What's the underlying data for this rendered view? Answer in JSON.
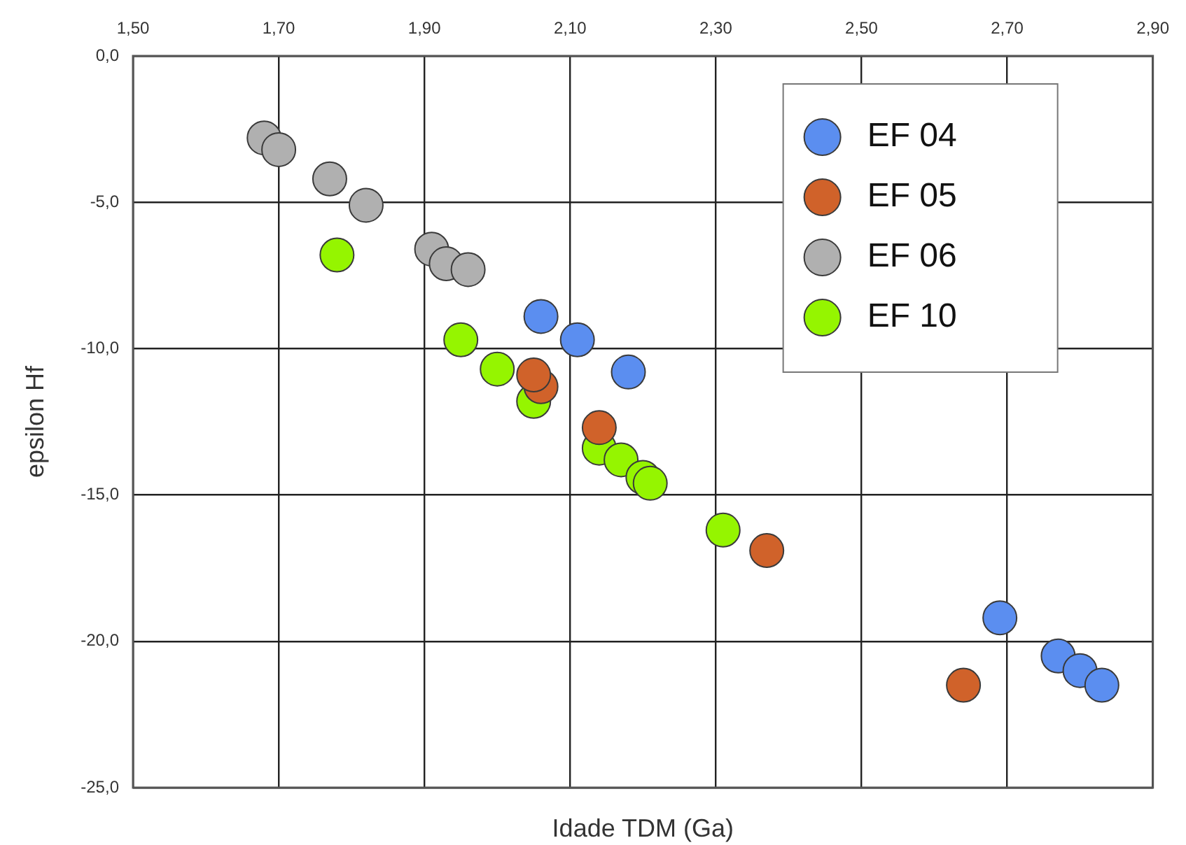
{
  "chart_data": {
    "type": "scatter",
    "xlabel": "Idade TDM (Ga)",
    "ylabel": "epsilon Hf",
    "xlim": [
      1.5,
      2.9
    ],
    "ylim": [
      -25,
      0
    ],
    "xticks": [
      {
        "value": 1.5,
        "label": "1,50"
      },
      {
        "value": 1.7,
        "label": "1,70"
      },
      {
        "value": 1.9,
        "label": "1,90"
      },
      {
        "value": 2.1,
        "label": "2,10"
      },
      {
        "value": 2.3,
        "label": "2,30"
      },
      {
        "value": 2.5,
        "label": "2,50"
      },
      {
        "value": 2.7,
        "label": "2,70"
      },
      {
        "value": 2.9,
        "label": "2,90"
      }
    ],
    "yticks": [
      {
        "value": 0,
        "label": "0,0"
      },
      {
        "value": -5,
        "label": "-5,0"
      },
      {
        "value": -10,
        "label": "-10,0"
      },
      {
        "value": -15,
        "label": "-15,0"
      },
      {
        "value": -20,
        "label": "-20,0"
      },
      {
        "value": -25,
        "label": "-25,0"
      }
    ],
    "grid": true,
    "legend": "top right",
    "marker": "circle",
    "series": [
      {
        "name": "EF 04",
        "color": "#5b8ef0",
        "x": [
          2.06,
          2.11,
          2.18,
          2.69,
          2.77,
          2.8,
          2.83
        ],
        "values": [
          -8.9,
          -9.7,
          -10.8,
          -19.2,
          -20.5,
          -21.0,
          -21.5
        ]
      },
      {
        "name": "EF 05",
        "color": "#d0622a",
        "x": [
          2.06,
          2.05,
          2.14,
          2.37,
          2.64
        ],
        "values": [
          -11.3,
          -10.9,
          -12.7,
          -16.9,
          -21.5
        ]
      },
      {
        "name": "EF 06",
        "color": "#b0b0b0",
        "x": [
          1.68,
          1.7,
          1.77,
          1.82,
          1.91,
          1.93,
          1.96
        ],
        "values": [
          -2.8,
          -3.2,
          -4.2,
          -5.1,
          -6.6,
          -7.1,
          -7.3
        ]
      },
      {
        "name": "EF 10",
        "color": "#95f500",
        "x": [
          1.78,
          1.95,
          2.0,
          2.05,
          2.14,
          2.17,
          2.2,
          2.21,
          2.31
        ],
        "values": [
          -6.8,
          -9.7,
          -10.7,
          -11.8,
          -13.4,
          -13.8,
          -14.4,
          -14.6,
          -16.2
        ]
      }
    ]
  }
}
